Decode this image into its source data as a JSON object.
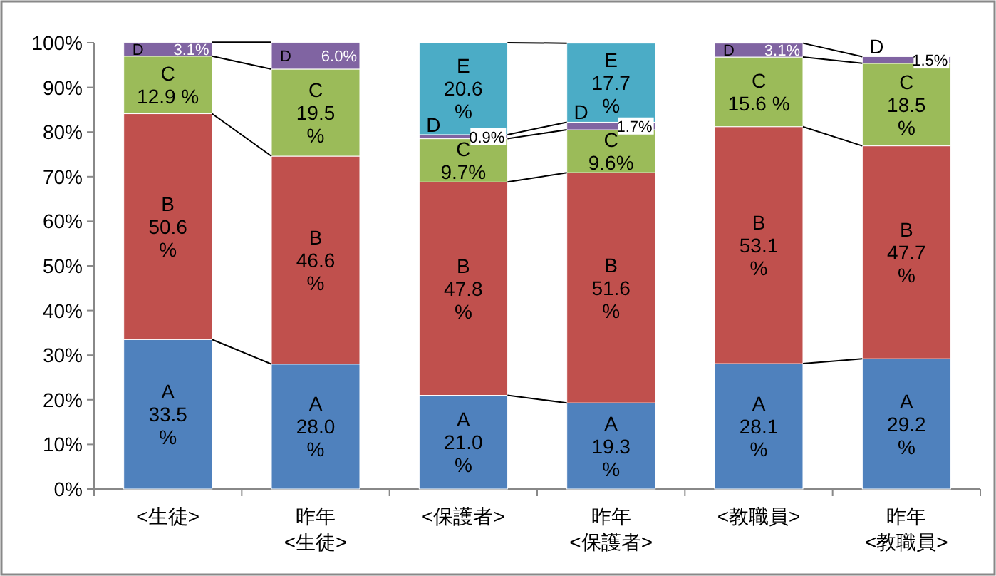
{
  "chart_data": {
    "type": "bar",
    "stacked": true,
    "categories": [
      "<生徒>",
      "昨年\n<生徒>",
      "<保護者>",
      "昨年\n<保護者>",
      "<教職員>",
      "昨年\n<教職員>"
    ],
    "ylim": [
      0,
      100
    ],
    "yticks": [
      {
        "value": 0,
        "label": "0%"
      },
      {
        "value": 10,
        "label": "10%"
      },
      {
        "value": 20,
        "label": "20%"
      },
      {
        "value": 30,
        "label": "30%"
      },
      {
        "value": 40,
        "label": "40%"
      },
      {
        "value": 50,
        "label": "50%"
      },
      {
        "value": 60,
        "label": "60%"
      },
      {
        "value": 70,
        "label": "70%"
      },
      {
        "value": 80,
        "label": "80%"
      },
      {
        "value": 90,
        "label": "90%"
      },
      {
        "value": 100,
        "label": "100%"
      }
    ],
    "series": [
      {
        "name": "A",
        "color": "#4f81bd",
        "values": [
          33.5,
          28.0,
          21.0,
          19.3,
          28.1,
          29.2
        ],
        "value_labels": [
          "33.5 %",
          "28.0 %",
          "21.0 %",
          "19.3 %",
          "28.1 %",
          "29.2 %"
        ]
      },
      {
        "name": "B",
        "color": "#c0504d",
        "values": [
          50.6,
          46.6,
          47.8,
          51.6,
          53.1,
          47.7
        ],
        "value_labels": [
          "50.6 %",
          "46.6 %",
          "47.8 %",
          "51.6 %",
          "53.1 %",
          "47.7 %"
        ]
      },
      {
        "name": "C",
        "color": "#9bbb59",
        "values": [
          12.9,
          19.5,
          9.7,
          9.6,
          15.6,
          18.5
        ],
        "value_labels": [
          "12.9 %",
          "19.5 %",
          "9.7%",
          "9.6%",
          "15.6 %",
          "18.5 %"
        ]
      },
      {
        "name": "D",
        "color": "#8064a2",
        "values": [
          3.1,
          6.0,
          0.9,
          1.7,
          3.1,
          1.5
        ],
        "value_labels": [
          "3.1%",
          "6.0%",
          "0.9%",
          "1.7%",
          "3.1%",
          "1.5%"
        ]
      },
      {
        "name": "E",
        "color": "#4bacc6",
        "values": [
          null,
          null,
          20.6,
          17.7,
          null,
          null
        ],
        "value_labels": [
          null,
          null,
          "20.6 %",
          "17.7 %",
          null,
          null
        ]
      }
    ]
  }
}
